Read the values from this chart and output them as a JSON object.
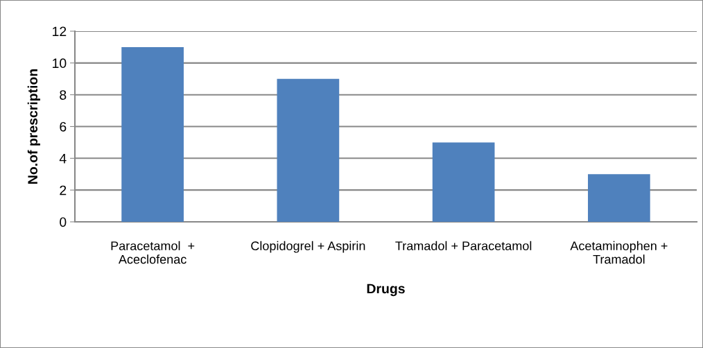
{
  "chart_data": {
    "type": "bar",
    "xlabel": "Drugs",
    "ylabel": "No.of prescription",
    "categories": [
      "Paracetamol  +\nAceclofenac",
      "Clopidogrel + Aspirin",
      "Tramadol + Paracetamol",
      "Acetaminophen +\nTramadol"
    ],
    "values": [
      11,
      9,
      5,
      3
    ],
    "color": "#4f81bd",
    "ylim": [
      0,
      12
    ],
    "yticks": [
      0,
      2,
      4,
      6,
      8,
      10,
      12
    ],
    "grid": "y",
    "legend": false
  }
}
